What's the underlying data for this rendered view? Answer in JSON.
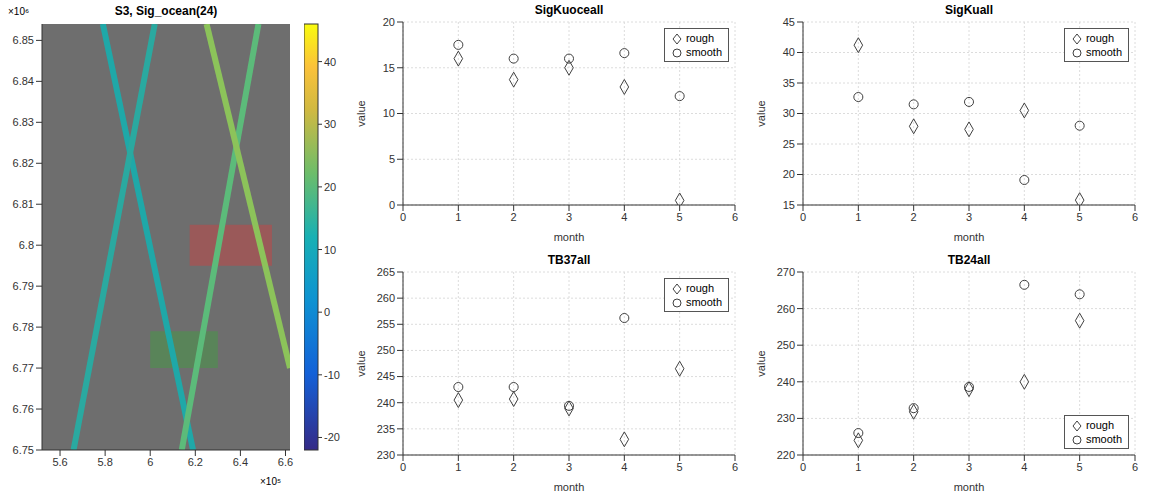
{
  "chart_data": [
    {
      "type": "line",
      "title": "S3, Sig_ocean(24)",
      "annotations": [
        "×10⁶",
        "×10⁵"
      ],
      "xlim": [
        5.52,
        6.62
      ],
      "xticks": [
        5.6,
        5.8,
        6,
        6.2,
        6.4,
        6.6
      ],
      "ylim": [
        6.75,
        6.854
      ],
      "yticks": [
        6.75,
        6.76,
        6.77,
        6.78,
        6.79,
        6.8,
        6.81,
        6.82,
        6.83,
        6.84,
        6.85
      ],
      "grid": false,
      "series": [
        {
          "color": "#1fa8a8",
          "x": [
            5.79,
            6.19
          ],
          "y": [
            6.854,
            6.75
          ]
        },
        {
          "color": "#2aa9a0",
          "x": [
            5.66,
            6.02
          ],
          "y": [
            6.75,
            6.854
          ]
        },
        {
          "color": "#5cbb7a",
          "x": [
            6.14,
            6.48
          ],
          "y": [
            6.75,
            6.854
          ]
        },
        {
          "color": "#8cc35a",
          "x": [
            6.25,
            6.62
          ],
          "y": [
            6.854,
            6.77
          ]
        }
      ],
      "regions": [
        {
          "color": "#d04040",
          "x": [
            6.175,
            6.54
          ],
          "y": [
            6.795,
            6.805
          ]
        },
        {
          "color": "#40a040",
          "x": [
            6.0,
            6.3
          ],
          "y": [
            6.77,
            6.779
          ]
        }
      ],
      "colorbar": {
        "range": [
          -22,
          46
        ],
        "ticks": [
          -20,
          -10,
          0,
          10,
          20,
          30,
          40
        ]
      }
    },
    {
      "type": "scatter",
      "title": "SigKuoceall",
      "xlabel": "month",
      "ylabel": "value",
      "x": [
        1,
        2,
        3,
        4,
        5
      ],
      "xlim": [
        0,
        6
      ],
      "xticks": [
        0,
        1,
        2,
        3,
        4,
        5,
        6
      ],
      "ylim": [
        0,
        20
      ],
      "yticks": [
        0,
        5,
        10,
        15,
        20
      ],
      "grid": true,
      "legend": "upper right",
      "series": [
        {
          "name": "rough",
          "marker": "diamond",
          "color": "#404040",
          "values": [
            16,
            13.7,
            15,
            12.9,
            0.5
          ]
        },
        {
          "name": "smooth",
          "marker": "circle",
          "color": "#404040",
          "values": [
            17.5,
            16,
            16,
            16.6,
            11.9
          ]
        }
      ]
    },
    {
      "type": "scatter",
      "title": "SigKuall",
      "xlabel": "month",
      "ylabel": "value",
      "x": [
        1,
        2,
        3,
        4,
        5
      ],
      "xlim": [
        0,
        6
      ],
      "xticks": [
        0,
        1,
        2,
        3,
        4,
        5,
        6
      ],
      "ylim": [
        15,
        45
      ],
      "yticks": [
        15,
        20,
        25,
        30,
        35,
        40,
        45
      ],
      "grid": true,
      "legend": "upper right",
      "series": [
        {
          "name": "rough",
          "marker": "diamond",
          "color": "#404040",
          "values": [
            41.2,
            27.9,
            27.4,
            30.5,
            15.8
          ]
        },
        {
          "name": "smooth",
          "marker": "circle",
          "color": "#404040",
          "values": [
            32.7,
            31.5,
            31.9,
            19.1,
            28
          ]
        }
      ]
    },
    {
      "type": "scatter",
      "title": "TB37all",
      "xlabel": "month",
      "ylabel": "value",
      "x": [
        1,
        2,
        3,
        4,
        5
      ],
      "xlim": [
        0,
        6
      ],
      "xticks": [
        0,
        1,
        2,
        3,
        4,
        5,
        6
      ],
      "ylim": [
        230,
        265
      ],
      "yticks": [
        230,
        235,
        240,
        245,
        250,
        255,
        260,
        265
      ],
      "grid": true,
      "legend": "upper right",
      "series": [
        {
          "name": "rough",
          "marker": "diamond",
          "color": "#404040",
          "values": [
            240.5,
            240.7,
            238.9,
            233,
            246.5
          ]
        },
        {
          "name": "smooth",
          "marker": "circle",
          "color": "#404040",
          "values": [
            243,
            243,
            239.4,
            256.2,
            null
          ]
        }
      ]
    },
    {
      "type": "scatter",
      "title": "TB24all",
      "xlabel": "month",
      "ylabel": "value",
      "x": [
        1,
        2,
        3,
        4,
        5
      ],
      "xlim": [
        0,
        6
      ],
      "xticks": [
        0,
        1,
        2,
        3,
        4,
        5,
        6
      ],
      "ylim": [
        220,
        270
      ],
      "yticks": [
        220,
        230,
        240,
        250,
        260,
        270
      ],
      "grid": true,
      "legend": "lower right",
      "series": [
        {
          "name": "rough",
          "marker": "diamond",
          "color": "#404040",
          "values": [
            224,
            231.8,
            238,
            240,
            256.7
          ]
        },
        {
          "name": "smooth",
          "marker": "circle",
          "color": "#404040",
          "values": [
            226,
            232.8,
            238.6,
            266.5,
            263.9
          ]
        }
      ]
    }
  ]
}
